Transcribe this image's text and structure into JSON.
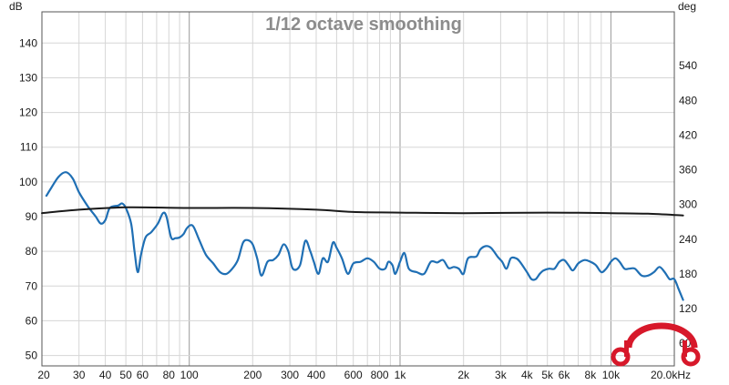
{
  "chart_data": {
    "type": "line",
    "title": "1/12 octave smoothing",
    "x_scale": "log",
    "xlim": [
      20,
      20000
    ],
    "left_axis": {
      "unit": "dB",
      "ylim": [
        47,
        149
      ],
      "ticks": [
        50,
        60,
        70,
        80,
        90,
        100,
        110,
        120,
        130,
        140
      ]
    },
    "right_axis": {
      "unit": "deg",
      "ylim": [
        21,
        633
      ],
      "ticks": [
        60,
        120,
        180,
        240,
        300,
        360,
        420,
        480,
        540
      ]
    },
    "x_tick_labels": [
      {
        "v": 20,
        "t": "20"
      },
      {
        "v": 30,
        "t": "30"
      },
      {
        "v": 40,
        "t": "40"
      },
      {
        "v": 50,
        "t": "50"
      },
      {
        "v": 60,
        "t": "60"
      },
      {
        "v": 80,
        "t": "80"
      },
      {
        "v": 100,
        "t": "100"
      },
      {
        "v": 200,
        "t": "200"
      },
      {
        "v": 300,
        "t": "300"
      },
      {
        "v": 400,
        "t": "400"
      },
      {
        "v": 600,
        "t": "600"
      },
      {
        "v": 800,
        "t": "800"
      },
      {
        "v": 1000,
        "t": "1k"
      },
      {
        "v": 2000,
        "t": "2k"
      },
      {
        "v": 3000,
        "t": "3k"
      },
      {
        "v": 4000,
        "t": "4k"
      },
      {
        "v": 5000,
        "t": "5k"
      },
      {
        "v": 6000,
        "t": "6k"
      },
      {
        "v": 8000,
        "t": "8k"
      },
      {
        "v": 10000,
        "t": "10k"
      },
      {
        "v": 20000,
        "t": "20.0kHz"
      }
    ],
    "grid": true,
    "series": [
      {
        "axis": "left",
        "color": "#1f6fb4",
        "points": [
          [
            21,
            96
          ],
          [
            22,
            98
          ],
          [
            24,
            101.5
          ],
          [
            26,
            102.8
          ],
          [
            28,
            101
          ],
          [
            30,
            97
          ],
          [
            33,
            93
          ],
          [
            36,
            90
          ],
          [
            38,
            88
          ],
          [
            40,
            89
          ],
          [
            42,
            92.5
          ],
          [
            46,
            93.2
          ],
          [
            48,
            93.8
          ],
          [
            50,
            92.5
          ],
          [
            53,
            88
          ],
          [
            55,
            80
          ],
          [
            57,
            74
          ],
          [
            59,
            79
          ],
          [
            62,
            84
          ],
          [
            66,
            85.5
          ],
          [
            71,
            88
          ],
          [
            75,
            91
          ],
          [
            78,
            90
          ],
          [
            82,
            84
          ],
          [
            86,
            83.8
          ],
          [
            90,
            84
          ],
          [
            94,
            85
          ],
          [
            97,
            86.5
          ],
          [
            101,
            87.5
          ],
          [
            105,
            87
          ],
          [
            112,
            83
          ],
          [
            120,
            79
          ],
          [
            130,
            76.5
          ],
          [
            140,
            74
          ],
          [
            150,
            73.5
          ],
          [
            160,
            75
          ],
          [
            170,
            77.5
          ],
          [
            180,
            82.5
          ],
          [
            190,
            83.2
          ],
          [
            200,
            82
          ],
          [
            210,
            78
          ],
          [
            220,
            73
          ],
          [
            235,
            77
          ],
          [
            250,
            77.5
          ],
          [
            265,
            79
          ],
          [
            280,
            82
          ],
          [
            295,
            80
          ],
          [
            310,
            75
          ],
          [
            335,
            76
          ],
          [
            355,
            83
          ],
          [
            375,
            80
          ],
          [
            390,
            77
          ],
          [
            410,
            73.5
          ],
          [
            430,
            78
          ],
          [
            455,
            77
          ],
          [
            480,
            82.5
          ],
          [
            500,
            81
          ],
          [
            530,
            78
          ],
          [
            565,
            73.5
          ],
          [
            600,
            76.5
          ],
          [
            650,
            77
          ],
          [
            700,
            78
          ],
          [
            750,
            77
          ],
          [
            800,
            75
          ],
          [
            850,
            75
          ],
          [
            880,
            77
          ],
          [
            920,
            76
          ],
          [
            950,
            73.5
          ],
          [
            1000,
            77
          ],
          [
            1050,
            79.5
          ],
          [
            1100,
            75
          ],
          [
            1200,
            74
          ],
          [
            1300,
            73.5
          ],
          [
            1400,
            77
          ],
          [
            1500,
            76.8
          ],
          [
            1600,
            77.5
          ],
          [
            1700,
            75.2
          ],
          [
            1800,
            75.5
          ],
          [
            1900,
            75
          ],
          [
            2000,
            73.5
          ],
          [
            2100,
            78
          ],
          [
            2300,
            78.5
          ],
          [
            2400,
            80.5
          ],
          [
            2550,
            81.5
          ],
          [
            2700,
            81
          ],
          [
            2900,
            78.5
          ],
          [
            3050,
            77
          ],
          [
            3200,
            75
          ],
          [
            3350,
            78
          ],
          [
            3550,
            78
          ],
          [
            3700,
            77
          ],
          [
            4000,
            74
          ],
          [
            4200,
            72
          ],
          [
            4400,
            72
          ],
          [
            4600,
            73.5
          ],
          [
            4800,
            74.5
          ],
          [
            5100,
            75
          ],
          [
            5400,
            75
          ],
          [
            5700,
            77
          ],
          [
            6000,
            77.5
          ],
          [
            6300,
            76
          ],
          [
            6600,
            74.5
          ],
          [
            7000,
            76.5
          ],
          [
            7500,
            77.5
          ],
          [
            8000,
            77
          ],
          [
            8500,
            76
          ],
          [
            9000,
            74
          ],
          [
            9500,
            75
          ],
          [
            10000,
            77
          ],
          [
            10500,
            78
          ],
          [
            11000,
            77
          ],
          [
            11600,
            75
          ],
          [
            12200,
            75
          ],
          [
            13000,
            75
          ],
          [
            14000,
            73
          ],
          [
            15000,
            73
          ],
          [
            16000,
            74
          ],
          [
            17000,
            75.5
          ],
          [
            18000,
            74
          ],
          [
            19000,
            72
          ],
          [
            20000,
            72
          ],
          [
            21000,
            69
          ],
          [
            22000,
            66
          ]
        ]
      },
      {
        "axis": "right",
        "color": "#1a1a1a",
        "points": [
          [
            20,
            285
          ],
          [
            30,
            291
          ],
          [
            50,
            295
          ],
          [
            100,
            294
          ],
          [
            200,
            294
          ],
          [
            400,
            291
          ],
          [
            600,
            287
          ],
          [
            1000,
            286
          ],
          [
            2000,
            285
          ],
          [
            5000,
            286
          ],
          [
            10000,
            285
          ],
          [
            15000,
            284
          ],
          [
            22000,
            281
          ]
        ]
      }
    ]
  }
}
